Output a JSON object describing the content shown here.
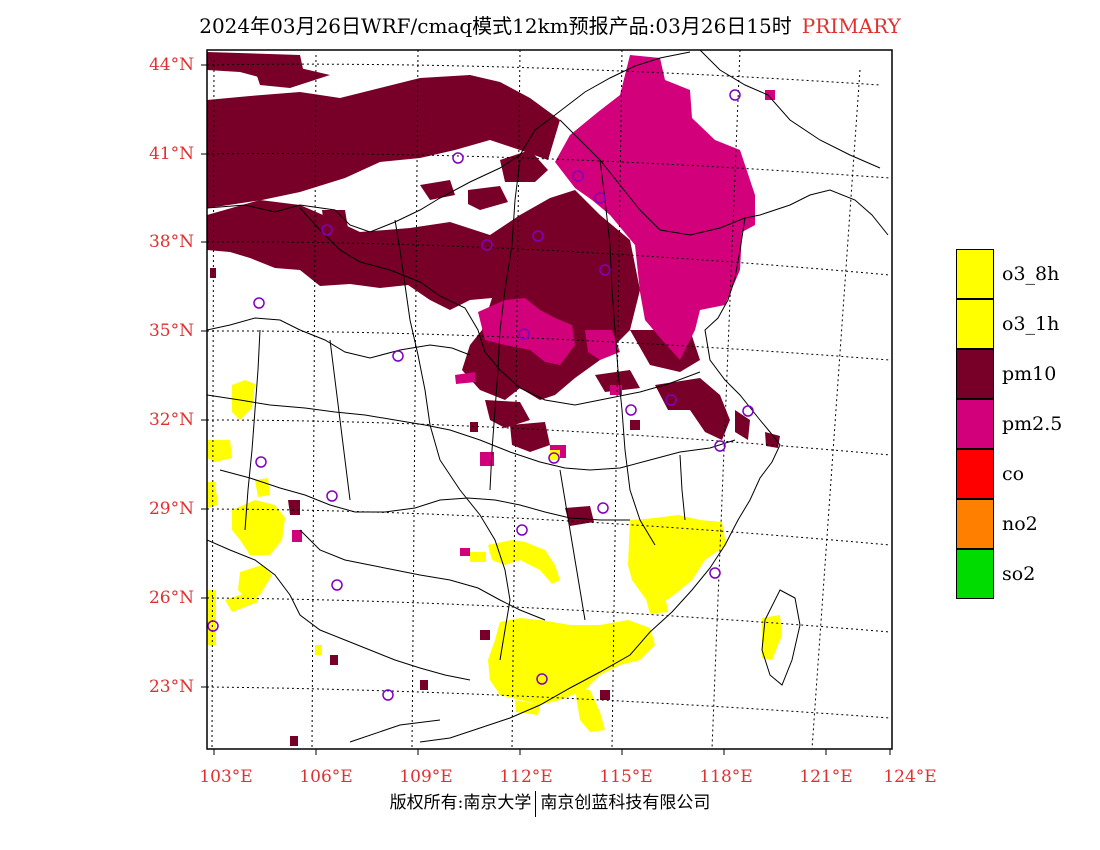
{
  "title": {
    "main": "2024年03月26日WRF/cmaq模式12km预报产品:03月26日15时",
    "tag": "PRIMARY"
  },
  "axes": {
    "lat_labels": [
      "44°N",
      "41°N",
      "38°N",
      "35°N",
      "32°N",
      "29°N",
      "26°N",
      "23°N"
    ],
    "lon_labels": [
      "103°E",
      "106°E",
      "109°E",
      "112°E",
      "115°E",
      "118°E",
      "121°E",
      "124°E"
    ]
  },
  "legend": {
    "items": [
      {
        "label": "o3_8h",
        "color": "#ffff00"
      },
      {
        "label": "o3_1h",
        "color": "#ffff00"
      },
      {
        "label": "pm10",
        "color": "#780028"
      },
      {
        "label": "pm2.5",
        "color": "#d2007a"
      },
      {
        "label": "co",
        "color": "#ff0000"
      },
      {
        "label": "no2",
        "color": "#ff8000"
      },
      {
        "label": "so2",
        "color": "#00dc00"
      }
    ]
  },
  "footer": {
    "left": "版权所有:南京大学",
    "right": "南京创蓝科技有限公司"
  },
  "colors": {
    "label_red": "#e03030",
    "o3": "#ffff00",
    "pm10": "#780028",
    "pm25": "#d2007a",
    "station": "#8000c0"
  }
}
